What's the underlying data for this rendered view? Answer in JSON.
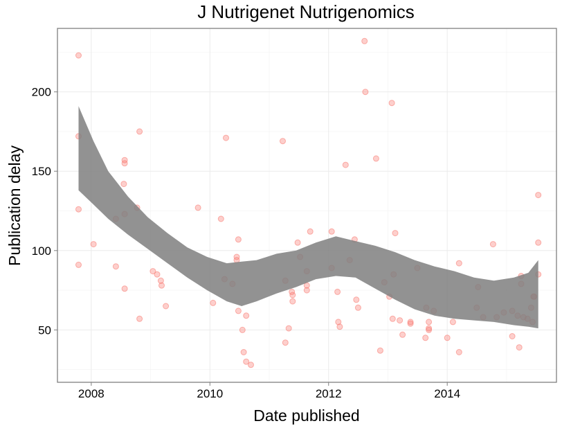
{
  "chart_data": {
    "type": "scatter",
    "title": "J Nutrigenet Nutrigenomics",
    "xlabel": "Date published",
    "ylabel": "Publication delay",
    "x_ticks": [
      "2008",
      "2010",
      "2012",
      "2014"
    ],
    "y_ticks": [
      "50",
      "100",
      "150",
      "200"
    ],
    "xlim": [
      "2007-06-07",
      "2015-11-04"
    ],
    "ylim": [
      17,
      240
    ],
    "grid": true,
    "point_color": "#f8766d",
    "ribbon_color": "#7f7f7f",
    "points": [
      {
        "x": "2007-10-15",
        "y": 223
      },
      {
        "x": "2007-10-15",
        "y": 172
      },
      {
        "x": "2007-10-15",
        "y": 126
      },
      {
        "x": "2007-10-15",
        "y": 91
      },
      {
        "x": "2008-01-15",
        "y": 104
      },
      {
        "x": "2008-06-01",
        "y": 120
      },
      {
        "x": "2008-06-01",
        "y": 90
      },
      {
        "x": "2008-07-25",
        "y": 157
      },
      {
        "x": "2008-07-25",
        "y": 155
      },
      {
        "x": "2008-07-20",
        "y": 142
      },
      {
        "x": "2008-07-25",
        "y": 123
      },
      {
        "x": "2008-07-25",
        "y": 76
      },
      {
        "x": "2008-10-10",
        "y": 127
      },
      {
        "x": "2008-10-25",
        "y": 175
      },
      {
        "x": "2008-10-25",
        "y": 57
      },
      {
        "x": "2009-01-15",
        "y": 87
      },
      {
        "x": "2009-02-10",
        "y": 85
      },
      {
        "x": "2009-03-05",
        "y": 81
      },
      {
        "x": "2009-03-10",
        "y": 78
      },
      {
        "x": "2009-04-05",
        "y": 65
      },
      {
        "x": "2009-10-20",
        "y": 127
      },
      {
        "x": "2010-01-20",
        "y": 67
      },
      {
        "x": "2010-03-10",
        "y": 120
      },
      {
        "x": "2010-04-01",
        "y": 82
      },
      {
        "x": "2010-04-10",
        "y": 171
      },
      {
        "x": "2010-05-20",
        "y": 79
      },
      {
        "x": "2010-06-15",
        "y": 96
      },
      {
        "x": "2010-06-15",
        "y": 94
      },
      {
        "x": "2010-06-25",
        "y": 107
      },
      {
        "x": "2010-06-25",
        "y": 62
      },
      {
        "x": "2010-07-20",
        "y": 50
      },
      {
        "x": "2010-07-28",
        "y": 36
      },
      {
        "x": "2010-08-12",
        "y": 59
      },
      {
        "x": "2010-08-12",
        "y": 30
      },
      {
        "x": "2010-09-10",
        "y": 28
      },
      {
        "x": "2011-03-25",
        "y": 169
      },
      {
        "x": "2011-04-10",
        "y": 81
      },
      {
        "x": "2011-04-10",
        "y": 42
      },
      {
        "x": "2011-05-01",
        "y": 51
      },
      {
        "x": "2011-05-20",
        "y": 74
      },
      {
        "x": "2011-05-25",
        "y": 72
      },
      {
        "x": "2011-05-25",
        "y": 68
      },
      {
        "x": "2011-06-25",
        "y": 105
      },
      {
        "x": "2011-07-10",
        "y": 96
      },
      {
        "x": "2011-08-20",
        "y": 87
      },
      {
        "x": "2011-08-20",
        "y": 78
      },
      {
        "x": "2011-08-20",
        "y": 75
      },
      {
        "x": "2011-09-10",
        "y": 112
      },
      {
        "x": "2012-01-20",
        "y": 112
      },
      {
        "x": "2012-01-20",
        "y": 89
      },
      {
        "x": "2012-02-25",
        "y": 74
      },
      {
        "x": "2012-03-01",
        "y": 55
      },
      {
        "x": "2012-03-10",
        "y": 52
      },
      {
        "x": "2012-04-15",
        "y": 154
      },
      {
        "x": "2012-05-10",
        "y": 94
      },
      {
        "x": "2012-06-10",
        "y": 107
      },
      {
        "x": "2012-06-20",
        "y": 69
      },
      {
        "x": "2012-07-01",
        "y": 64
      },
      {
        "x": "2012-08-10",
        "y": 232
      },
      {
        "x": "2012-08-15",
        "y": 200
      },
      {
        "x": "2012-10-20",
        "y": 158
      },
      {
        "x": "2012-11-15",
        "y": 37
      },
      {
        "x": "2012-12-10",
        "y": 80
      },
      {
        "x": "2013-01-10",
        "y": 71
      },
      {
        "x": "2013-01-25",
        "y": 193
      },
      {
        "x": "2013-01-30",
        "y": 57
      },
      {
        "x": "2013-02-05",
        "y": 85
      },
      {
        "x": "2013-02-15",
        "y": 111
      },
      {
        "x": "2013-03-15",
        "y": 56
      },
      {
        "x": "2013-04-01",
        "y": 47
      },
      {
        "x": "2013-05-20",
        "y": 55
      },
      {
        "x": "2013-05-20",
        "y": 54
      },
      {
        "x": "2013-07-01",
        "y": 89
      },
      {
        "x": "2013-08-20",
        "y": 45
      },
      {
        "x": "2013-08-25",
        "y": 64
      },
      {
        "x": "2013-09-10",
        "y": 55
      },
      {
        "x": "2013-09-10",
        "y": 51
      },
      {
        "x": "2013-09-10",
        "y": 50
      },
      {
        "x": "2013-10-10",
        "y": 62
      },
      {
        "x": "2014-01-01",
        "y": 45
      },
      {
        "x": "2014-02-05",
        "y": 55
      },
      {
        "x": "2014-03-15",
        "y": 92
      },
      {
        "x": "2014-03-15",
        "y": 36
      },
      {
        "x": "2014-07-01",
        "y": 64
      },
      {
        "x": "2014-07-10",
        "y": 77
      },
      {
        "x": "2014-08-10",
        "y": 58
      },
      {
        "x": "2014-10-10",
        "y": 104
      },
      {
        "x": "2014-11-01",
        "y": 58
      },
      {
        "x": "2014-12-15",
        "y": 61
      },
      {
        "x": "2015-02-05",
        "y": 62
      },
      {
        "x": "2015-02-05",
        "y": 46
      },
      {
        "x": "2015-03-10",
        "y": 59
      },
      {
        "x": "2015-03-20",
        "y": 39
      },
      {
        "x": "2015-04-01",
        "y": 84
      },
      {
        "x": "2015-04-01",
        "y": 79
      },
      {
        "x": "2015-04-15",
        "y": 58
      },
      {
        "x": "2015-05-10",
        "y": 57
      },
      {
        "x": "2015-06-01",
        "y": 64
      },
      {
        "x": "2015-06-10",
        "y": 55
      },
      {
        "x": "2015-06-15",
        "y": 71
      },
      {
        "x": "2015-06-20",
        "y": 71
      },
      {
        "x": "2015-07-15",
        "y": 85
      },
      {
        "x": "2015-07-15",
        "y": 105
      },
      {
        "x": "2015-07-15",
        "y": 135
      }
    ],
    "smooth_band": [
      {
        "x": "2007-10-15",
        "lower": 138,
        "upper": 191
      },
      {
        "x": "2008-01-15",
        "lower": 129,
        "upper": 169
      },
      {
        "x": "2008-04-15",
        "lower": 120,
        "upper": 150
      },
      {
        "x": "2008-08-15",
        "lower": 110,
        "upper": 134
      },
      {
        "x": "2008-12-15",
        "lower": 101,
        "upper": 121
      },
      {
        "x": "2009-04-15",
        "lower": 92,
        "upper": 111
      },
      {
        "x": "2009-08-15",
        "lower": 83,
        "upper": 102
      },
      {
        "x": "2009-12-15",
        "lower": 75,
        "upper": 96
      },
      {
        "x": "2010-04-15",
        "lower": 68,
        "upper": 92
      },
      {
        "x": "2010-07-15",
        "lower": 65,
        "upper": 93
      },
      {
        "x": "2010-10-15",
        "lower": 68,
        "upper": 94
      },
      {
        "x": "2011-02-15",
        "lower": 73,
        "upper": 98
      },
      {
        "x": "2011-06-15",
        "lower": 77,
        "upper": 100
      },
      {
        "x": "2011-10-15",
        "lower": 82,
        "upper": 105
      },
      {
        "x": "2012-02-15",
        "lower": 84,
        "upper": 109
      },
      {
        "x": "2012-06-15",
        "lower": 83,
        "upper": 106
      },
      {
        "x": "2012-10-15",
        "lower": 76,
        "upper": 103
      },
      {
        "x": "2013-02-15",
        "lower": 69,
        "upper": 99
      },
      {
        "x": "2013-06-15",
        "lower": 63,
        "upper": 94
      },
      {
        "x": "2013-10-15",
        "lower": 59,
        "upper": 90
      },
      {
        "x": "2014-02-15",
        "lower": 57,
        "upper": 87
      },
      {
        "x": "2014-06-15",
        "lower": 56,
        "upper": 83
      },
      {
        "x": "2014-10-15",
        "lower": 55,
        "upper": 81
      },
      {
        "x": "2015-02-15",
        "lower": 53,
        "upper": 83
      },
      {
        "x": "2015-05-15",
        "lower": 52,
        "upper": 86
      },
      {
        "x": "2015-07-15",
        "lower": 51,
        "upper": 94
      }
    ]
  }
}
